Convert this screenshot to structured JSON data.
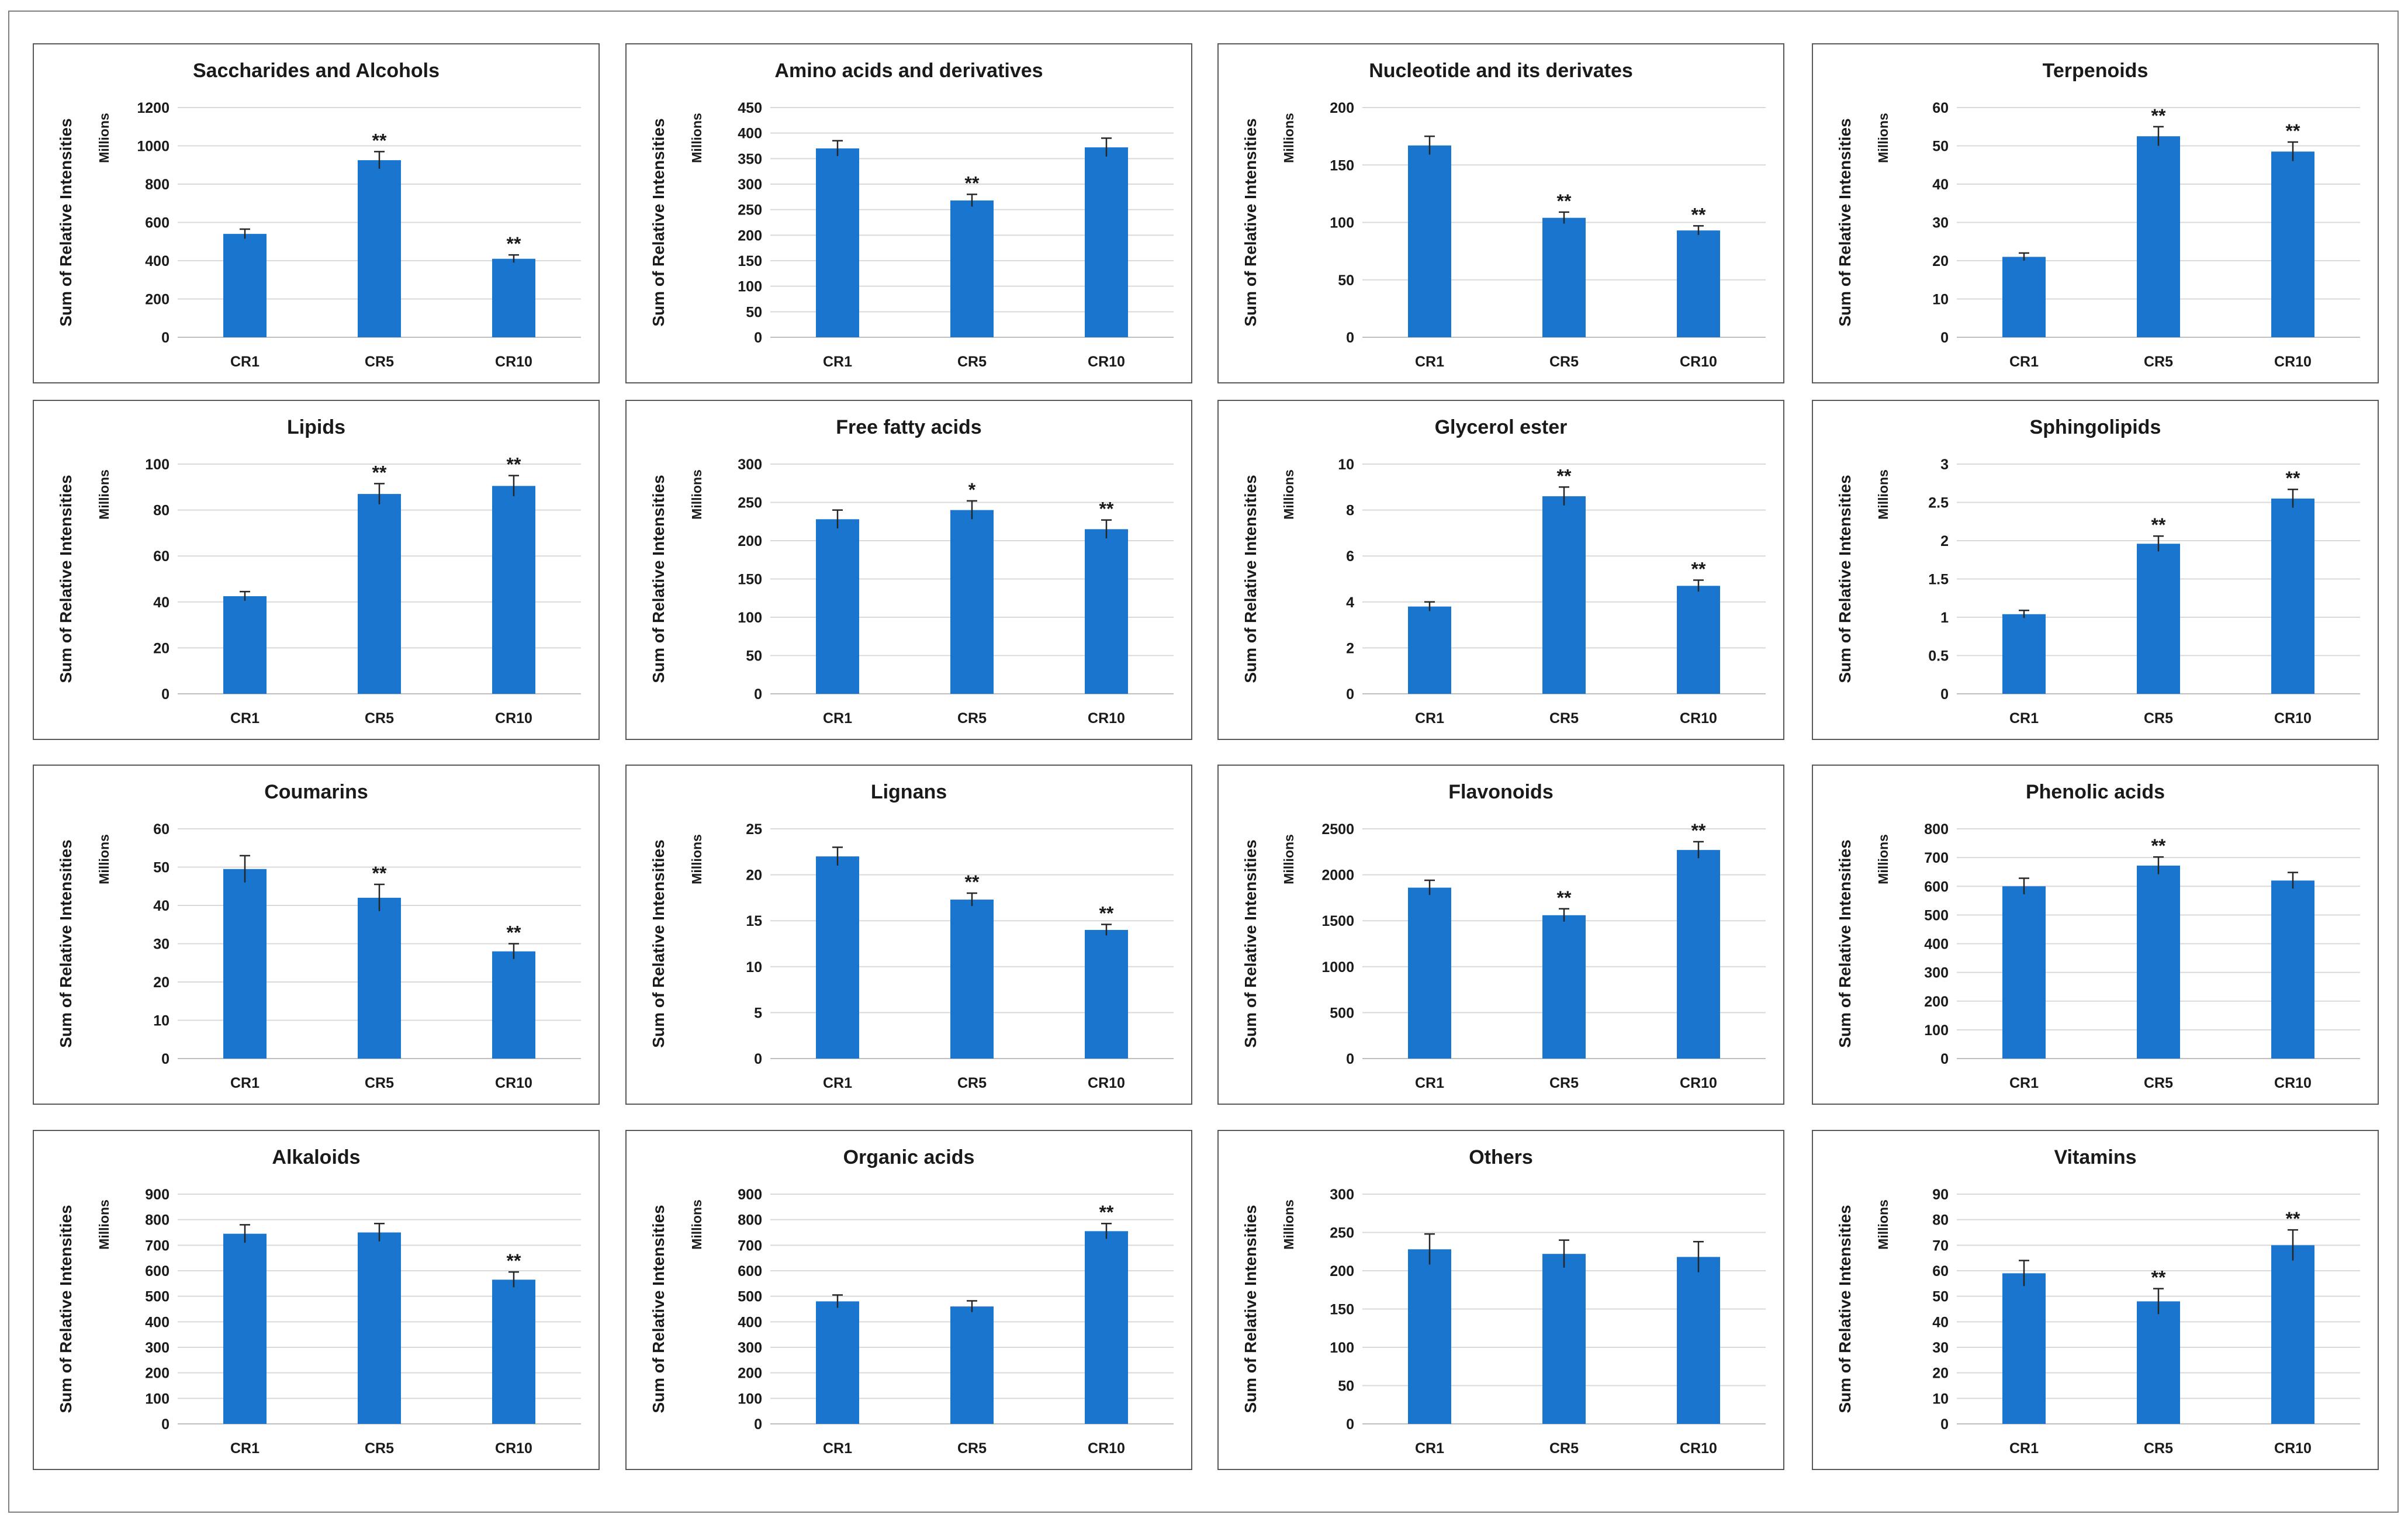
{
  "figure": {
    "y_axis_label": "Sum of Relative Intensities",
    "unit_label": "Millions",
    "bar_color": "#1a75cf",
    "grid_color": "#d9d9d9",
    "frame_color": "#7f7f7f"
  },
  "chart_data": [
    {
      "type": "bar",
      "title": "Saccharides  and Alcohols",
      "categories": [
        "CR1",
        "CR5",
        "CR10"
      ],
      "values": [
        540,
        925,
        410
      ],
      "errors": [
        25,
        45,
        20
      ],
      "significance": [
        "",
        "**",
        "**"
      ],
      "ylim": [
        0,
        1200
      ],
      "yticks": [
        0,
        200,
        400,
        600,
        800,
        1000,
        1200
      ],
      "ylabel": "Sum of Relative Intensities",
      "units": "Millions"
    },
    {
      "type": "bar",
      "title": "Amino acids and derivatives",
      "categories": [
        "CR1",
        "CR5",
        "CR10"
      ],
      "values": [
        370,
        268,
        372
      ],
      "errors": [
        15,
        12,
        18
      ],
      "significance": [
        "",
        "**",
        ""
      ],
      "ylim": [
        0,
        450
      ],
      "yticks": [
        0,
        50,
        100,
        150,
        200,
        250,
        300,
        350,
        400,
        450
      ],
      "ylabel": "Sum of Relative Intensities",
      "units": "Millions"
    },
    {
      "type": "bar",
      "title": "Nucleotide and its derivates",
      "categories": [
        "CR1",
        "CR5",
        "CR10"
      ],
      "values": [
        167,
        104,
        93
      ],
      "errors": [
        8,
        5,
        4
      ],
      "significance": [
        "",
        "**",
        "**"
      ],
      "ylim": [
        0,
        200
      ],
      "yticks": [
        0,
        50,
        100,
        150,
        200
      ],
      "ylabel": "Sum of Relative Intensities",
      "units": "Millions"
    },
    {
      "type": "bar",
      "title": "Terpenoids",
      "categories": [
        "CR1",
        "CR5",
        "CR10"
      ],
      "values": [
        21,
        52.5,
        48.5
      ],
      "errors": [
        1,
        2.5,
        2.5
      ],
      "significance": [
        "",
        "**",
        "**"
      ],
      "ylim": [
        0,
        60
      ],
      "yticks": [
        0,
        10,
        20,
        30,
        40,
        50,
        60
      ],
      "ylabel": "Sum of Relative Intensities",
      "units": "Millions"
    },
    {
      "type": "bar",
      "title": "Lipids",
      "categories": [
        "CR1",
        "CR5",
        "CR10"
      ],
      "values": [
        42.5,
        87,
        90.5
      ],
      "errors": [
        2,
        4.5,
        4.5
      ],
      "significance": [
        "",
        "**",
        "**"
      ],
      "ylim": [
        0,
        100
      ],
      "yticks": [
        0,
        20,
        40,
        60,
        80,
        100
      ],
      "ylabel": "Sum of Relative Intensities",
      "units": "Millions"
    },
    {
      "type": "bar",
      "title": "Free fatty acids",
      "categories": [
        "CR1",
        "CR5",
        "CR10"
      ],
      "values": [
        228,
        240,
        215
      ],
      "errors": [
        12,
        12,
        12
      ],
      "significance": [
        "",
        "*",
        "**"
      ],
      "ylim": [
        0,
        300
      ],
      "yticks": [
        0,
        50,
        100,
        150,
        200,
        250,
        300
      ],
      "ylabel": "Sum of Relative Intensities",
      "units": "Millions"
    },
    {
      "type": "bar",
      "title": "Glycerol ester",
      "categories": [
        "CR1",
        "CR5",
        "CR10"
      ],
      "values": [
        3.8,
        8.6,
        4.7
      ],
      "errors": [
        0.2,
        0.4,
        0.25
      ],
      "significance": [
        "",
        "**",
        "**"
      ],
      "ylim": [
        0,
        10
      ],
      "yticks": [
        0,
        2,
        4,
        6,
        8,
        10
      ],
      "ylabel": "Sum of Relative Intensities",
      "units": "Millions"
    },
    {
      "type": "bar",
      "title": "Sphingolipids",
      "categories": [
        "CR1",
        "CR5",
        "CR10"
      ],
      "values": [
        1.04,
        1.96,
        2.55
      ],
      "errors": [
        0.05,
        0.1,
        0.12
      ],
      "significance": [
        "",
        "**",
        "**"
      ],
      "ylim": [
        0,
        3
      ],
      "yticks": [
        0,
        0.5,
        1,
        1.5,
        2,
        2.5,
        3
      ],
      "ylabel": "Sum of Relative Intensities",
      "units": "Millions"
    },
    {
      "type": "bar",
      "title": "Coumarins",
      "categories": [
        "CR1",
        "CR5",
        "CR10"
      ],
      "values": [
        49.5,
        42,
        28
      ],
      "errors": [
        3.5,
        3.5,
        2
      ],
      "significance": [
        "",
        "**",
        "**"
      ],
      "ylim": [
        0,
        60
      ],
      "yticks": [
        0,
        10,
        20,
        30,
        40,
        50,
        60
      ],
      "ylabel": "Sum of Relative Intensities",
      "units": "Millions"
    },
    {
      "type": "bar",
      "title": "Lignans",
      "categories": [
        "CR1",
        "CR5",
        "CR10"
      ],
      "values": [
        22,
        17.3,
        14
      ],
      "errors": [
        1,
        0.7,
        0.6
      ],
      "significance": [
        "",
        "**",
        "**"
      ],
      "ylim": [
        0,
        25
      ],
      "yticks": [
        0,
        5,
        10,
        15,
        20,
        25
      ],
      "ylabel": "Sum of Relative Intensities",
      "units": "Millions"
    },
    {
      "type": "bar",
      "title": "Flavonoids",
      "categories": [
        "CR1",
        "CR5",
        "CR10"
      ],
      "values": [
        1860,
        1560,
        2270
      ],
      "errors": [
        80,
        70,
        90
      ],
      "significance": [
        "",
        "**",
        "**"
      ],
      "ylim": [
        0,
        2500
      ],
      "yticks": [
        0,
        500,
        1000,
        1500,
        2000,
        2500
      ],
      "ylabel": "Sum of Relative Intensities",
      "units": "Millions"
    },
    {
      "type": "bar",
      "title": "Phenolic acids",
      "categories": [
        "CR1",
        "CR5",
        "CR10"
      ],
      "values": [
        600,
        672,
        620
      ],
      "errors": [
        28,
        30,
        28
      ],
      "significance": [
        "",
        "**",
        ""
      ],
      "ylim": [
        0,
        800
      ],
      "yticks": [
        0,
        100,
        200,
        300,
        400,
        500,
        600,
        700,
        800
      ],
      "ylabel": "Sum of Relative Intensities",
      "units": "Millions"
    },
    {
      "type": "bar",
      "title": "Alkaloids",
      "categories": [
        "CR1",
        "CR5",
        "CR10"
      ],
      "values": [
        745,
        750,
        565
      ],
      "errors": [
        35,
        35,
        30
      ],
      "significance": [
        "",
        "",
        "**"
      ],
      "ylim": [
        0,
        900
      ],
      "yticks": [
        0,
        100,
        200,
        300,
        400,
        500,
        600,
        700,
        800,
        900
      ],
      "ylabel": "Sum of Relative Intensities",
      "units": "Millions"
    },
    {
      "type": "bar",
      "title": "Organic acids",
      "categories": [
        "CR1",
        "CR5",
        "CR10"
      ],
      "values": [
        480,
        460,
        755
      ],
      "errors": [
        25,
        22,
        30
      ],
      "significance": [
        "",
        "",
        "**"
      ],
      "ylim": [
        0,
        900
      ],
      "yticks": [
        0,
        100,
        200,
        300,
        400,
        500,
        600,
        700,
        800,
        900
      ],
      "ylabel": "Sum of Relative Intensities",
      "units": "Millions"
    },
    {
      "type": "bar",
      "title": "Others",
      "categories": [
        "CR1",
        "CR5",
        "CR10"
      ],
      "values": [
        228,
        222,
        218
      ],
      "errors": [
        20,
        18,
        20
      ],
      "significance": [
        "",
        "",
        ""
      ],
      "ylim": [
        0,
        300
      ],
      "yticks": [
        0,
        50,
        100,
        150,
        200,
        250,
        300
      ],
      "ylabel": "Sum of Relative Intensities",
      "units": "Millions"
    },
    {
      "type": "bar",
      "title": "Vitamins",
      "categories": [
        "CR1",
        "CR5",
        "CR10"
      ],
      "values": [
        59,
        48,
        70
      ],
      "errors": [
        5,
        5,
        6
      ],
      "significance": [
        "",
        "**",
        "**"
      ],
      "ylim": [
        0,
        90
      ],
      "yticks": [
        0,
        10,
        20,
        30,
        40,
        50,
        60,
        70,
        80,
        90
      ],
      "ylabel": "Sum of Relative Intensities",
      "units": "Millions"
    }
  ]
}
